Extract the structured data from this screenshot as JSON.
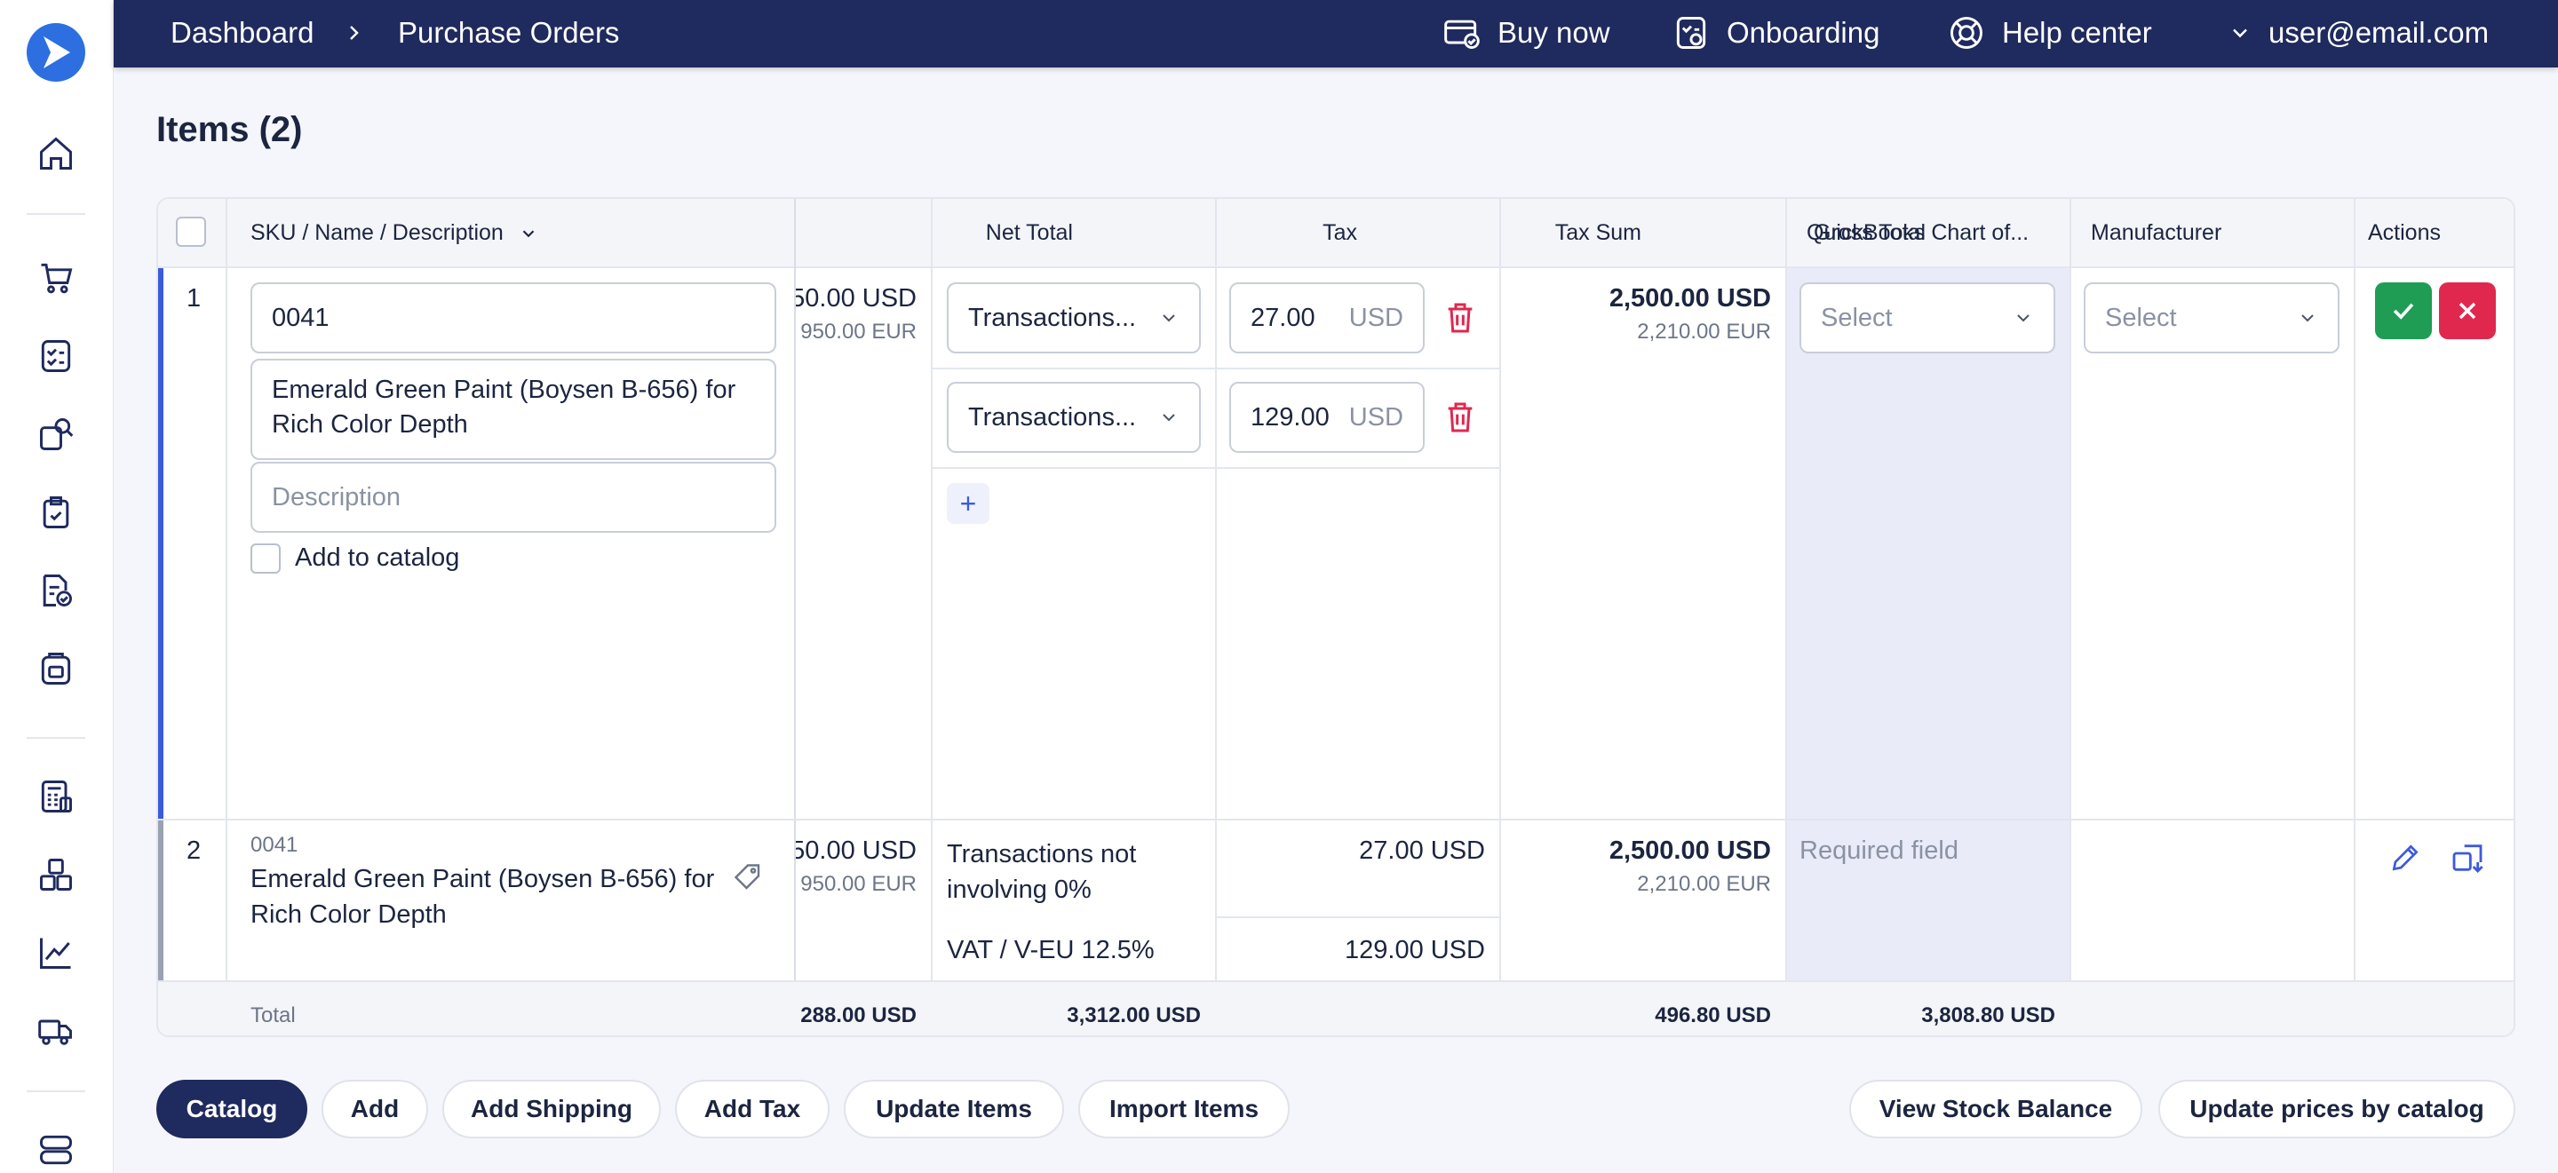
{
  "breadcrumb": {
    "root": "Dashboard",
    "current": "Purchase Orders"
  },
  "topbar": {
    "buy_now": "Buy now",
    "onboarding": "Onboarding",
    "help_center": "Help center",
    "user": "user@email.com"
  },
  "page": {
    "title": "Items (2)"
  },
  "table": {
    "headers": {
      "sku": "SKU / Name / Description",
      "net_total": "Net Total",
      "tax": "Tax",
      "tax_sum": "Tax Sum",
      "gross_total": "Gross Total",
      "quickbooks": "QuickBooks Chart of...",
      "manufacturer": "Manufacturer",
      "actions": "Actions"
    },
    "row1": {
      "index": "1",
      "sku_value": "0041",
      "name_line1": "Emerald Green Paint (Boysen B-656) for",
      "name_line2": "Rich Color Depth",
      "description_placeholder": "Description",
      "add_to_catalog": "Add to catalog",
      "net_usd": "50.00 USD",
      "net_eur": "950.00 EUR",
      "tax1": "Transactions...",
      "tax2": "Transactions...",
      "tax_sum1": "27.00",
      "tax_sum2": "129.00",
      "currency": "USD",
      "add_tax": "+",
      "gross_usd": "2,500.00 USD",
      "gross_eur": "2,210.00 EUR",
      "quickbooks_placeholder": "Select",
      "manufacturer_placeholder": "Select"
    },
    "row2": {
      "index": "2",
      "sku": "0041",
      "name_line1": "Emerald Green Paint (Boysen B-656) for",
      "name_line2": "Rich Color Depth",
      "net_usd": "50.00 USD",
      "net_eur": "950.00 EUR",
      "tax1_line1": "Transactions not",
      "tax1_line2": "involving 0%",
      "tax2": "VAT / V-EU 12.5%",
      "tax_sum1": "27.00 USD",
      "tax_sum2": "129.00 USD",
      "gross_usd": "2,500.00 USD",
      "gross_eur": "2,210.00 EUR",
      "quickbooks": "Required field"
    },
    "totals": {
      "label": "Total",
      "net": "288.00 USD",
      "tax": "3,312.00 USD",
      "gross": "496.80 USD",
      "quickbooks": "3,808.80 USD"
    }
  },
  "actions": {
    "catalog": "Catalog",
    "add": "Add",
    "add_shipping": "Add Shipping",
    "add_tax": "Add Tax",
    "update_items": "Update Items",
    "import_items": "Import Items",
    "view_stock": "View Stock Balance",
    "update_prices": "Update prices by catalog"
  },
  "colors": {
    "navy": "#1f2a5e",
    "accent": "#3b5bdb",
    "danger": "#e0284f",
    "success": "#1f9d55"
  }
}
